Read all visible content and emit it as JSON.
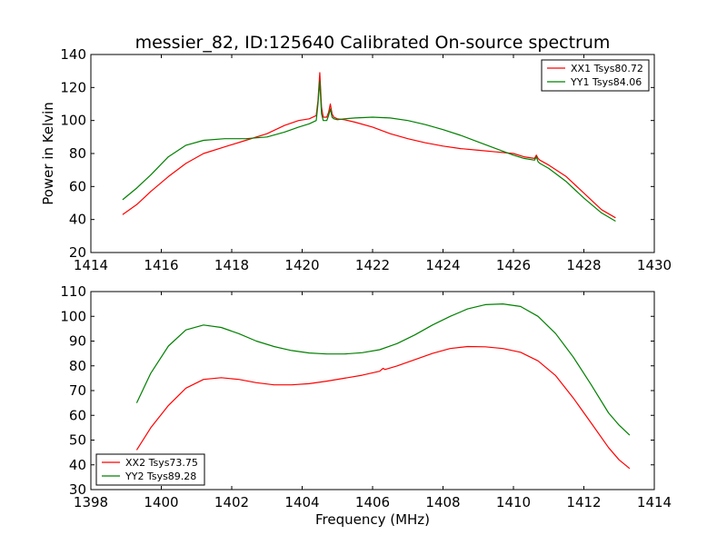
{
  "chart_data": [
    {
      "type": "line",
      "title": "messier_82, ID:125640 Calibrated On-source spectrum",
      "xlabel": "",
      "ylabel": "Power in Kelvin",
      "xlim": [
        1414,
        1430
      ],
      "ylim": [
        20,
        140
      ],
      "xticks": [
        1414,
        1416,
        1418,
        1420,
        1422,
        1424,
        1426,
        1428,
        1430
      ],
      "yticks": [
        20,
        40,
        60,
        80,
        100,
        120,
        140
      ],
      "legend_position": "top-right",
      "grid": false,
      "series": [
        {
          "name": "XX1 Tsys80.72",
          "color": "#ff0000",
          "x": [
            1414.9,
            1415.3,
            1415.7,
            1416.2,
            1416.7,
            1417.2,
            1417.8,
            1418.4,
            1419.0,
            1419.5,
            1419.9,
            1420.2,
            1420.4,
            1420.45,
            1420.5,
            1420.55,
            1420.6,
            1420.7,
            1420.75,
            1420.8,
            1420.85,
            1420.9,
            1421.0,
            1421.2,
            1421.5,
            1422.0,
            1422.5,
            1423.0,
            1423.5,
            1424.0,
            1424.5,
            1425.0,
            1425.5,
            1426.0,
            1426.3,
            1426.6,
            1426.65,
            1426.7,
            1426.75,
            1427.0,
            1427.5,
            1428.0,
            1428.5,
            1428.9
          ],
          "y": [
            43,
            49,
            57,
            66,
            74,
            80,
            84,
            88,
            92,
            97,
            100,
            101,
            103,
            112,
            129,
            108,
            102,
            102,
            105,
            110,
            104,
            102,
            101,
            100.5,
            99,
            96,
            92,
            89,
            86.5,
            84.5,
            83,
            82,
            81,
            80,
            78,
            77,
            79,
            77,
            76,
            73,
            66,
            56,
            46,
            41
          ]
        },
        {
          "name": "YY1 Tsys84.06",
          "color": "#008000",
          "x": [
            1414.9,
            1415.3,
            1415.7,
            1416.2,
            1416.7,
            1417.2,
            1417.8,
            1418.4,
            1419.0,
            1419.5,
            1419.9,
            1420.2,
            1420.4,
            1420.45,
            1420.5,
            1420.55,
            1420.6,
            1420.7,
            1420.75,
            1420.8,
            1420.85,
            1420.9,
            1421.0,
            1421.2,
            1421.5,
            1422.0,
            1422.5,
            1423.0,
            1423.5,
            1424.0,
            1424.5,
            1425.0,
            1425.5,
            1426.0,
            1426.3,
            1426.6,
            1426.65,
            1426.7,
            1426.75,
            1427.0,
            1427.5,
            1428.0,
            1428.5,
            1428.9
          ],
          "y": [
            52,
            59,
            67,
            78,
            85,
            88,
            89,
            89,
            90,
            93,
            96,
            98,
            100,
            110,
            124,
            104,
            100,
            100,
            103,
            107,
            102,
            101,
            100.5,
            101,
            101.5,
            102,
            101.5,
            100,
            97.5,
            94.5,
            91,
            87,
            83,
            79,
            77,
            76,
            78,
            75,
            74,
            71,
            63,
            53,
            44,
            39
          ]
        }
      ]
    },
    {
      "type": "line",
      "title": "",
      "xlabel": "Frequency (MHz)",
      "ylabel": "",
      "xlim": [
        1398,
        1414
      ],
      "ylim": [
        30,
        110
      ],
      "xticks": [
        1398,
        1400,
        1402,
        1404,
        1406,
        1408,
        1410,
        1412,
        1414
      ],
      "yticks": [
        30,
        40,
        50,
        60,
        70,
        80,
        90,
        100,
        110
      ],
      "legend_position": "bottom-left",
      "grid": false,
      "series": [
        {
          "name": "XX2 Tsys73.75",
          "color": "#ff0000",
          "x": [
            1399.3,
            1399.7,
            1400.2,
            1400.7,
            1401.2,
            1401.7,
            1402.2,
            1402.7,
            1403.2,
            1403.7,
            1404.2,
            1404.7,
            1405.2,
            1405.7,
            1406.2,
            1406.3,
            1406.35,
            1406.7,
            1407.2,
            1407.7,
            1408.2,
            1408.7,
            1409.2,
            1409.7,
            1410.2,
            1410.7,
            1411.2,
            1411.7,
            1412.2,
            1412.7,
            1413.0,
            1413.3
          ],
          "y": [
            46,
            55,
            64,
            71,
            74.5,
            75.2,
            74.5,
            73.2,
            72.3,
            72.3,
            72.8,
            73.8,
            75,
            76.2,
            77.8,
            79,
            78.5,
            80,
            82.5,
            85,
            87,
            87.8,
            87.7,
            87,
            85.5,
            82,
            76,
            67,
            57,
            47,
            42,
            38.5
          ]
        },
        {
          "name": "YY2 Tsys89.28",
          "color": "#008000",
          "x": [
            1399.3,
            1399.7,
            1400.2,
            1400.7,
            1401.2,
            1401.7,
            1402.2,
            1402.7,
            1403.2,
            1403.7,
            1404.2,
            1404.7,
            1405.2,
            1405.7,
            1406.2,
            1406.7,
            1407.2,
            1407.7,
            1408.2,
            1408.7,
            1409.2,
            1409.7,
            1410.2,
            1410.7,
            1411.2,
            1411.7,
            1412.2,
            1412.7,
            1413.0,
            1413.3
          ],
          "y": [
            65,
            77,
            88,
            94.5,
            96.5,
            95.5,
            93,
            90,
            87.8,
            86.2,
            85.2,
            84.8,
            84.8,
            85.3,
            86.5,
            89,
            92.5,
            96.5,
            100,
            103,
            104.7,
            105,
            104,
            100,
            93,
            83.5,
            72.5,
            61,
            56,
            52
          ]
        }
      ]
    }
  ]
}
